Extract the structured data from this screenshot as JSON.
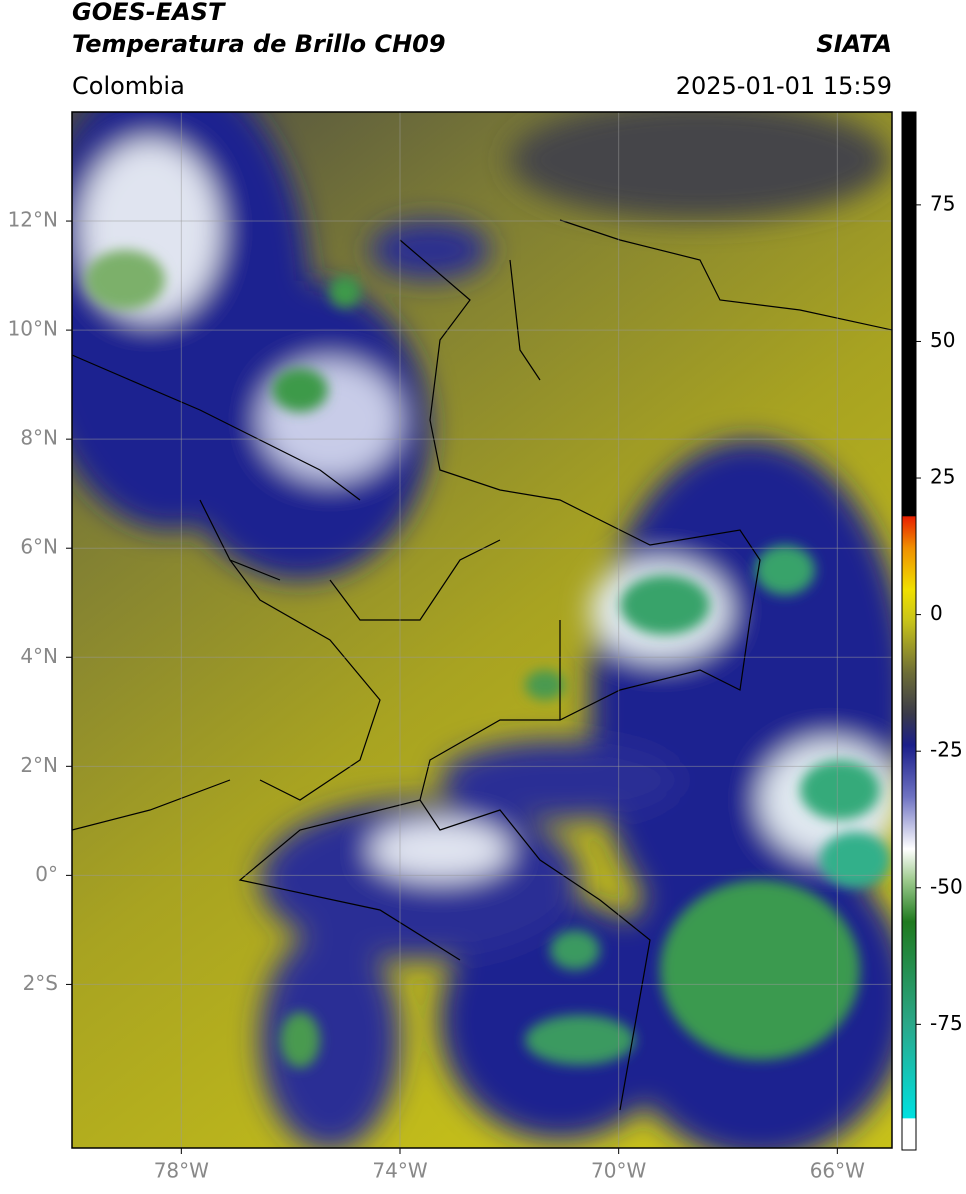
{
  "header": {
    "title": "GOES-EAST",
    "subtitle": "Temperatura de Brillo CH09",
    "source": "SIATA",
    "region": "Colombia",
    "datetime": "2025-01-01 15:59"
  },
  "map": {
    "xlim": [
      -80,
      -65
    ],
    "ylim": [
      -5,
      14
    ],
    "xticks": [
      {
        "value": -78,
        "label": "78°W"
      },
      {
        "value": -74,
        "label": "74°W"
      },
      {
        "value": -70,
        "label": "70°W"
      },
      {
        "value": -66,
        "label": "66°W"
      }
    ],
    "yticks": [
      {
        "value": 12,
        "label": "12°N"
      },
      {
        "value": 10,
        "label": "10°N"
      },
      {
        "value": 8,
        "label": "8°N"
      },
      {
        "value": 6,
        "label": "6°N"
      },
      {
        "value": 4,
        "label": "4°N"
      },
      {
        "value": 2,
        "label": "2°N"
      },
      {
        "value": 0,
        "label": "0°"
      },
      {
        "value": -2,
        "label": "2°S"
      }
    ],
    "grid": true
  },
  "colorbar": {
    "lim": [
      -98,
      92
    ],
    "ticks": [
      75,
      50,
      25,
      0,
      -25,
      -50,
      -75
    ]
  }
}
